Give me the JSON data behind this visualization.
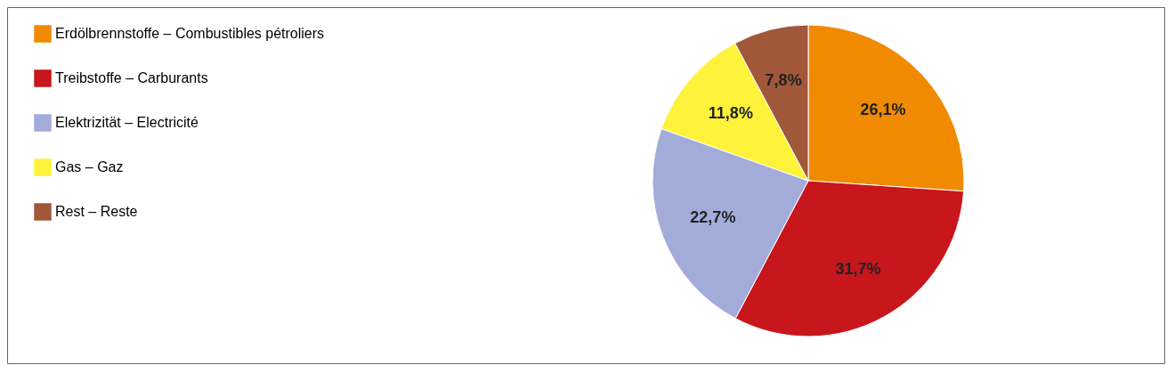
{
  "chart_data": {
    "type": "pie",
    "categories": [
      "Erdölbrennstoffe – Combustibles pétroliers",
      "Treibstoffe – Carburants",
      "Elektrizität – Electricité",
      "Gas – Gaz",
      "Rest – Reste"
    ],
    "values": [
      26.1,
      31.7,
      22.7,
      11.8,
      7.8
    ],
    "value_labels": [
      "26,1%",
      "31,7%",
      "22,7%",
      "11,8%",
      "7,8%"
    ],
    "colors": [
      "#f08a00",
      "#c8161d",
      "#a3acd9",
      "#fff23a",
      "#a0573a"
    ],
    "legend": "top left"
  }
}
